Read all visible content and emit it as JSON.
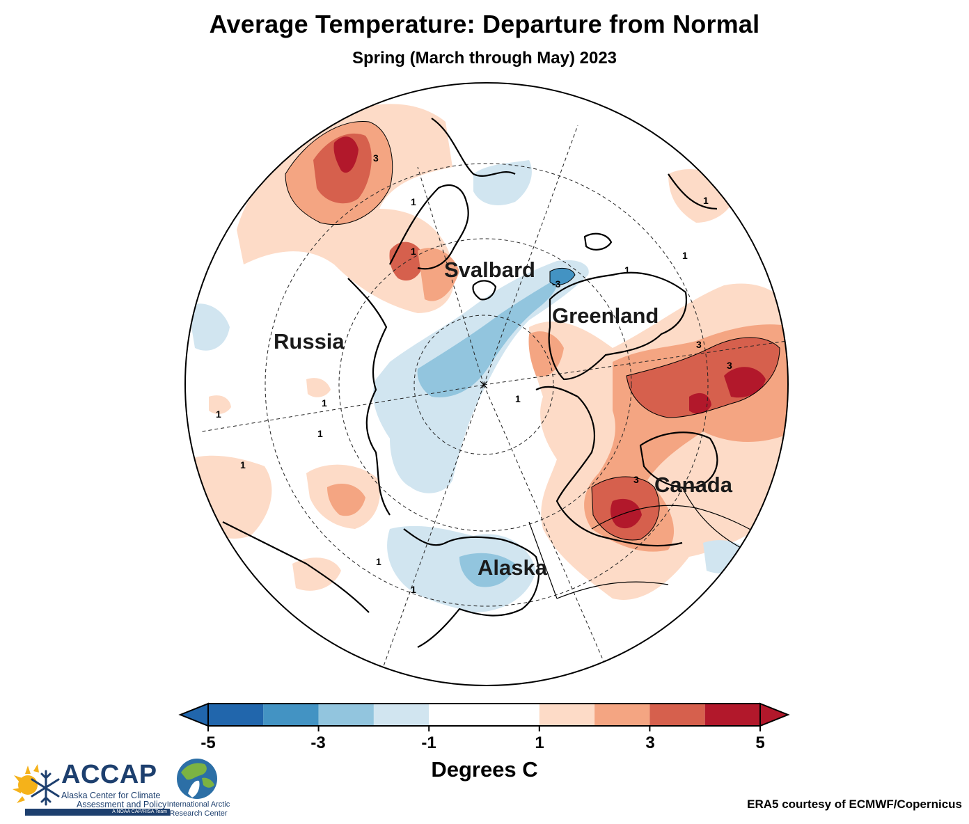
{
  "title": "Average Temperature: Departure from Normal",
  "subtitle": "Spring (March through May) 2023",
  "regions": [
    "Russia",
    "Svalbard",
    "Greenland",
    "Canada",
    "Alaska"
  ],
  "contour_labels": [
    "3",
    "1",
    "1",
    "1",
    "-3",
    "1",
    "1",
    "3",
    "3",
    "3",
    "1",
    "1",
    "1",
    "1",
    "1",
    "1",
    "1"
  ],
  "colorbar": {
    "title": "Degrees C",
    "tick_labels": [
      "-5",
      "-3",
      "-1",
      "1",
      "3",
      "5"
    ],
    "ticks": [
      -5,
      -3,
      -1,
      1,
      3,
      5
    ],
    "bins": [
      -5,
      -4,
      -3,
      -2,
      -1,
      1,
      2,
      3,
      4,
      5
    ],
    "colors": [
      "#2166ac",
      "#4393c3",
      "#92c5de",
      "#d1e5f0",
      "#ffffff",
      "#fddbc7",
      "#f4a582",
      "#d6604d",
      "#b2182b"
    ],
    "under_color": "#2166ac",
    "over_color": "#b2182b"
  },
  "logos": {
    "accap": {
      "name": "ACCAP",
      "line1": "Alaska Center for Climate",
      "line2": "Assessment and Policy",
      "band": "A NOAA CAP/RISA Team"
    },
    "iarc": {
      "line1": "International Arctic",
      "line2": "Research Center"
    }
  },
  "credit": "ERA5 courtesy of ECMWF/Copernicus"
}
